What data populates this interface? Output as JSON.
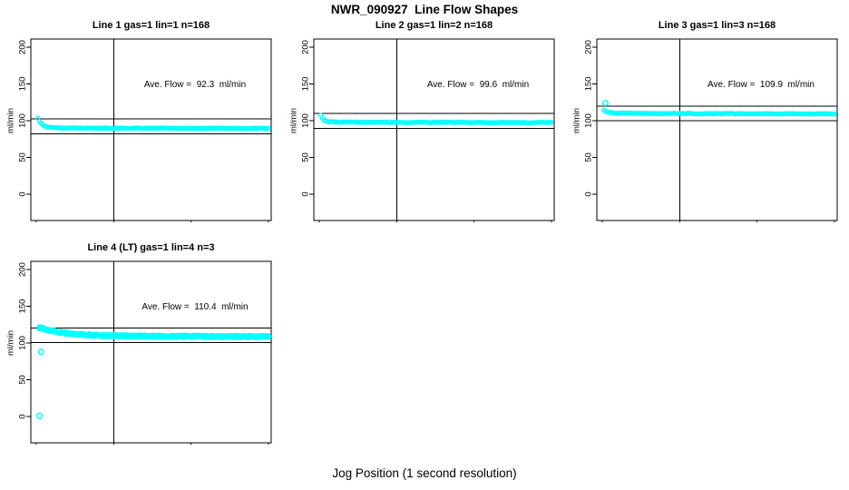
{
  "page": {
    "title": "NWR_090927  Line Flow Shapes",
    "xlabel": "Jog Position (1 second resolution)",
    "background_color": "#FFFFFF",
    "axis_color": "#000000",
    "point_color": "#00FFFF"
  },
  "chart_data": [
    {
      "type": "scatter",
      "title": "Line 1 gas=1 lin=1 n=168",
      "annotation": "Ave. Flow =  92.3  ml/min",
      "ave_flow_ml_min": 92.3,
      "ylabel": "ml/min",
      "xlim": [
        0,
        150
      ],
      "ylim": [
        0,
        200
      ],
      "xticks": [
        0,
        50,
        100,
        150
      ],
      "yticks": [
        0,
        50,
        100,
        150,
        200
      ],
      "grid": false,
      "legend": null,
      "reference_lines": {
        "vertical_x": 50,
        "horizontal_y": [
          102.3,
          82.3
        ]
      },
      "series": [
        {
          "name": "flow",
          "marker": "open-circle",
          "color": "#00FFFF",
          "passes": 1,
          "noise": 0.5,
          "radius": 2.1,
          "x_start": 1,
          "x_end": 150,
          "points": [
            [
              1,
              104
            ],
            [
              2,
              99.5
            ],
            [
              3,
              96.5
            ],
            [
              4,
              94.5
            ],
            [
              5,
              93
            ],
            [
              6,
              92
            ],
            [
              8,
              91
            ],
            [
              10,
              90.6
            ],
            [
              15,
              90.2
            ],
            [
              20,
              90
            ],
            [
              30,
              89.9
            ],
            [
              50,
              89.8
            ],
            [
              75,
              89.7
            ],
            [
              100,
              89.6
            ],
            [
              125,
              89.6
            ],
            [
              150,
              89.5
            ]
          ]
        }
      ],
      "outliers": []
    },
    {
      "type": "scatter",
      "title": "Line 2 gas=1 lin=2 n=168",
      "annotation": "Ave. Flow =  99.6  ml/min",
      "ave_flow_ml_min": 99.6,
      "ylabel": "ml/min",
      "xlim": [
        0,
        150
      ],
      "ylim": [
        0,
        200
      ],
      "xticks": [
        0,
        50,
        100,
        150
      ],
      "yticks": [
        0,
        50,
        100,
        150,
        200
      ],
      "grid": false,
      "legend": null,
      "reference_lines": {
        "vertical_x": 50,
        "horizontal_y": [
          109.6,
          89.6
        ]
      },
      "series": [
        {
          "name": "flow",
          "marker": "open-circle",
          "color": "#00FFFF",
          "passes": 1,
          "noise": 0.5,
          "radius": 2.1,
          "x_start": 1,
          "x_end": 150,
          "points": [
            [
              1,
              107
            ],
            [
              2,
              103
            ],
            [
              3,
              100.5
            ],
            [
              4,
              99.5
            ],
            [
              5,
              99
            ],
            [
              8,
              98.4
            ],
            [
              12,
              98.1
            ],
            [
              20,
              97.9
            ],
            [
              35,
              97.8
            ],
            [
              60,
              97.7
            ],
            [
              100,
              97.6
            ],
            [
              150,
              97.5
            ]
          ]
        }
      ],
      "outliers": []
    },
    {
      "type": "scatter",
      "title": "Line 3 gas=1 lin=3 n=168",
      "annotation": "Ave. Flow =  109.9  ml/min",
      "ave_flow_ml_min": 109.9,
      "ylabel": "ml/min",
      "xlim": [
        0,
        150
      ],
      "ylim": [
        0,
        200
      ],
      "xticks": [
        0,
        50,
        100,
        150
      ],
      "yticks": [
        0,
        50,
        100,
        150,
        200
      ],
      "grid": false,
      "legend": null,
      "reference_lines": {
        "vertical_x": 50,
        "horizontal_y": [
          119.9,
          99.9
        ]
      },
      "series": [
        {
          "name": "flow",
          "marker": "open-circle",
          "color": "#00FFFF",
          "passes": 1,
          "noise": 0.5,
          "radius": 2.1,
          "x_start": 1,
          "x_end": 150,
          "points": [
            [
              1,
              114.5
            ],
            [
              2,
              113
            ],
            [
              3,
              112
            ],
            [
              5,
              111
            ],
            [
              8,
              110.5
            ],
            [
              15,
              110.1
            ],
            [
              30,
              109.8
            ],
            [
              60,
              109.6
            ],
            [
              100,
              109.5
            ],
            [
              150,
              109.4
            ]
          ]
        }
      ],
      "outliers": [
        [
          2,
          124
        ]
      ]
    },
    {
      "type": "scatter",
      "title": "Line 4 (LT) gas=1 lin=4 n=3",
      "annotation": "Ave. Flow =  110.4  ml/min",
      "ave_flow_ml_min": 110.4,
      "ylabel": "ml/min",
      "xlim": [
        0,
        150
      ],
      "ylim": [
        0,
        200
      ],
      "xticks": [
        0,
        50,
        100,
        150
      ],
      "yticks": [
        0,
        50,
        100,
        150,
        200
      ],
      "grid": false,
      "legend": null,
      "reference_lines": {
        "vertical_x": 50,
        "horizontal_y": [
          120.4,
          100.4
        ]
      },
      "series": [
        {
          "name": "flow",
          "marker": "open-circle",
          "color": "#00FFFF",
          "passes": 3,
          "noise": 1.3,
          "radius": 2.5,
          "x_start": 2,
          "x_end": 150,
          "points": [
            [
              2,
              120.5
            ],
            [
              3,
              120.8
            ],
            [
              4,
              119.8
            ],
            [
              6,
              118.5
            ],
            [
              8,
              117.5
            ],
            [
              10,
              116.5
            ],
            [
              14,
              115
            ],
            [
              18,
              113.8
            ],
            [
              22,
              112.8
            ],
            [
              26,
              112
            ],
            [
              30,
              111.4
            ],
            [
              35,
              110.8
            ],
            [
              40,
              110.3
            ],
            [
              45,
              110
            ],
            [
              50,
              109.8
            ],
            [
              60,
              109.4
            ],
            [
              70,
              109.2
            ],
            [
              80,
              109.1
            ],
            [
              90,
              109
            ],
            [
              100,
              108.9
            ],
            [
              110,
              108.8
            ],
            [
              120,
              108.8
            ],
            [
              130,
              108.9
            ],
            [
              140,
              108.7
            ],
            [
              150,
              108.6
            ]
          ]
        }
      ],
      "outliers": [
        [
          3,
          88
        ],
        [
          2,
          1
        ]
      ]
    }
  ]
}
